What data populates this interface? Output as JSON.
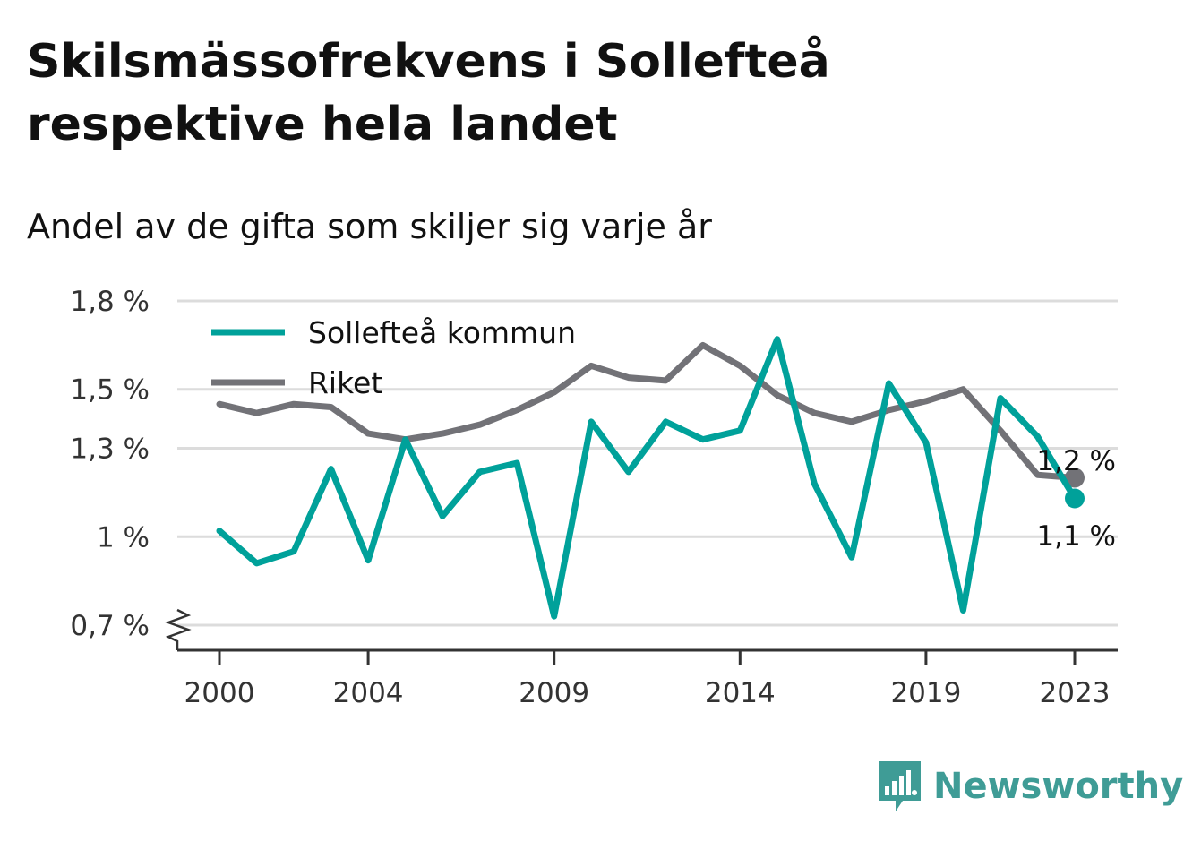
{
  "title": "Skilsmässofrekvens i Sollefteå respektive hela landet",
  "subtitle": "Andel av de gifta som skiljer sig varje år",
  "brand": "Newsworthy",
  "chart_data": {
    "type": "line",
    "x": [
      2000,
      2001,
      2002,
      2003,
      2004,
      2005,
      2006,
      2007,
      2008,
      2009,
      2010,
      2011,
      2012,
      2013,
      2014,
      2015,
      2016,
      2017,
      2018,
      2019,
      2020,
      2021,
      2022,
      2023
    ],
    "x_ticks": [
      2000,
      2004,
      2009,
      2014,
      2019,
      2023
    ],
    "x_tick_labels": [
      "2000",
      "2004",
      "2009",
      "2014",
      "2019",
      "2023"
    ],
    "y_ticks": [
      0.7,
      1.0,
      1.3,
      1.5,
      1.8
    ],
    "y_tick_labels": [
      "0,7 %",
      "1 %",
      "1,3 %",
      "1,5 %",
      "1,8 %"
    ],
    "ylim": [
      0.62,
      1.8
    ],
    "y_axis_break": true,
    "grid": true,
    "legend_position": "top-left",
    "series": [
      {
        "name": "Sollefteå kommun",
        "color": "#00a19a",
        "values": [
          1.02,
          0.91,
          0.95,
          1.23,
          0.92,
          1.33,
          1.07,
          1.22,
          1.25,
          0.73,
          1.39,
          1.22,
          1.39,
          1.33,
          1.36,
          1.67,
          1.18,
          0.93,
          1.52,
          1.32,
          0.75,
          1.47,
          1.34,
          1.13
        ],
        "end_label": "1,1 %"
      },
      {
        "name": "Riket",
        "color": "#727277",
        "values": [
          1.45,
          1.42,
          1.45,
          1.44,
          1.35,
          1.33,
          1.35,
          1.38,
          1.43,
          1.49,
          1.58,
          1.54,
          1.53,
          1.65,
          1.58,
          1.48,
          1.42,
          1.39,
          1.43,
          1.46,
          1.5,
          1.36,
          1.21,
          1.2
        ],
        "end_label": "1,2 %"
      }
    ]
  }
}
